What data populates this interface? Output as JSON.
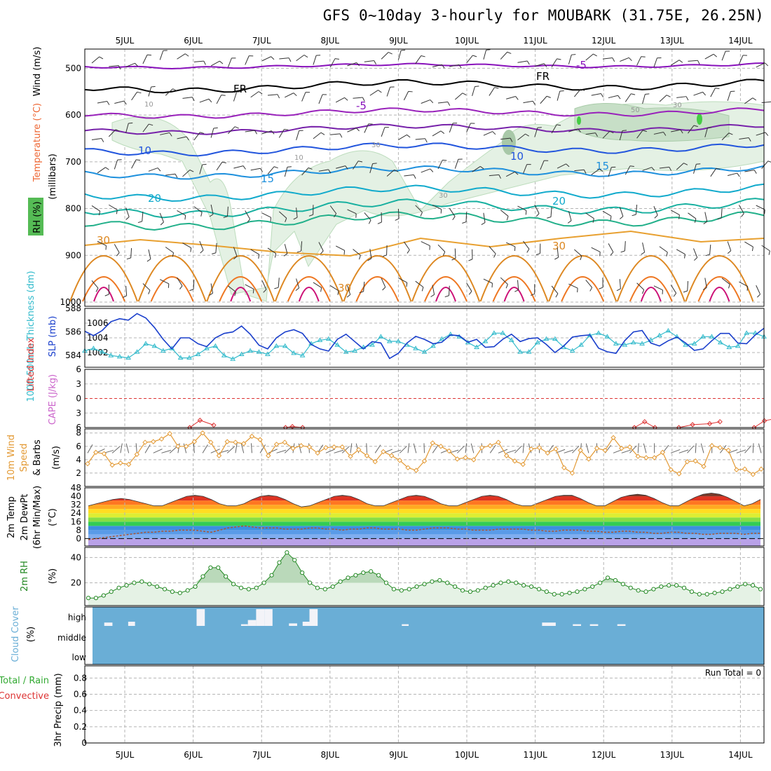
{
  "title": "GFS 0~10day 3-hourly for MOUBARK (31.75E, 26.25N)",
  "x_axis": {
    "labels": [
      "5JUL",
      "6JUL",
      "7JUL",
      "8JUL",
      "9JUL",
      "10JUL",
      "11JUL",
      "12JUL",
      "13JUL",
      "14JUL"
    ]
  },
  "panel_labels": {
    "upper_wind": "Wind (m/s)",
    "upper_temp": "Temperature (°C)",
    "upper_rh": "RH (%)",
    "upper_units": "(millibars)",
    "thickness": "1000-500mb Thickness (dm)",
    "slp": "SLP (mb)",
    "lifted_index": "Lifted Index",
    "cape": "CAPE (J/kg)",
    "wind10_a": "10m Wind",
    "wind10_b": "Speed",
    "wind10_c": "& Barbs",
    "wind10_units": "(m/s)",
    "temp_a": "2m Temp",
    "temp_b": "2m DewPt",
    "temp_c": "(6hr Min/Max)",
    "temp_units": "(°C)",
    "rh2m": "2m RH",
    "rh2m_units": "(%)",
    "cloud": "Cloud Cover",
    "cloud_units": "(%)",
    "precip_a": "Total / Rain",
    "precip_b": "Convective",
    "precip_c": "3hr Precip (mm)",
    "run_total": "Run Total = 0"
  },
  "colors": {
    "thickness": "#33bbcc",
    "slp": "#1a3fcc",
    "cape": "#cc66cc",
    "lifted_index": "#dd3333",
    "wind10": "#e39a35",
    "rh2m": "#228822",
    "cloud_bg": "#6aaed6",
    "precip_total": "#33aa33",
    "precip_conv": "#dd3333",
    "temp_label": "#ee6633",
    "wind_label": "#000000",
    "rh_label": "#228822"
  },
  "chart_data": [
    {
      "type": "heatmap",
      "panel": "upper-air cross section",
      "y_ticks": [
        "500",
        "600",
        "700",
        "800",
        "900",
        "1000"
      ],
      "ylim": [
        1000,
        450
      ],
      "temperature_contour_labels": [
        "-5",
        "-5",
        "10",
        "10",
        "15",
        "15",
        "20",
        "20",
        "30",
        "30",
        "30",
        "FR",
        "FR"
      ],
      "rh_contour_labels": [
        "10",
        "10",
        "30",
        "30",
        "50",
        "30"
      ]
    },
    {
      "type": "line",
      "panel": "thickness_slp",
      "thickness_ticks": [
        "584",
        "586",
        "588"
      ],
      "slp_ticks": [
        "1002",
        "1004",
        "1006"
      ],
      "ylim_thickness": [
        583,
        588
      ],
      "ylim_slp": [
        1000,
        1008
      ],
      "series": [
        {
          "name": "1000-500mb Thickness (dm)",
          "values": [
            584.4,
            584.6,
            584.3,
            584.0,
            583.9,
            583.8,
            584.3,
            585.0,
            584.8,
            584.4,
            584.6,
            583.8,
            583.8,
            584.1,
            584.6,
            584.8,
            584.0,
            583.7,
            584.1,
            584.4,
            584.3,
            584.1,
            584.8,
            584.8,
            584.2,
            584.0,
            585.0,
            585.3,
            585.4,
            584.9,
            584.3,
            584.4,
            584.7,
            584.9,
            585.6,
            585.2,
            585.2,
            584.9,
            584.6,
            584.3,
            584.8,
            585.4,
            585.8,
            585.6,
            585.1,
            584.7,
            585.2,
            585.9,
            585.9,
            585.3,
            584.3,
            584.3,
            585.1,
            585.4,
            585.4,
            584.7,
            584.4,
            584.9,
            585.7,
            585.9,
            585.6,
            585.0,
            584.9,
            585.1,
            585.0,
            585.3,
            585.7,
            586.1,
            585.6,
            584.9,
            585.0,
            585.6,
            585.6,
            585.1,
            584.7,
            584.8,
            585.9,
            585.9,
            585.6
          ]
        },
        {
          "name": "SLP (mb)",
          "values": [
            1004.9,
            1004.3,
            1005.0,
            1006.2,
            1006.6,
            1006.4,
            1007.3,
            1006.7,
            1005.4,
            1003.8,
            1002.5,
            1004.0,
            1004.0,
            1003.2,
            1002.8,
            1004.0,
            1004.6,
            1004.8,
            1005.6,
            1004.5,
            1003.0,
            1002.5,
            1004.0,
            1004.8,
            1005.1,
            1004.6,
            1003.1,
            1002.5,
            1002.2,
            1003.8,
            1004.5,
            1003.5,
            1002.5,
            1003.5,
            1003.3,
            1001.2,
            1001.9,
            1003.3,
            1004.2,
            1003.8,
            1003.2,
            1003.4,
            1004.4,
            1004.3,
            1003.4,
            1003.8,
            1002.7,
            1002.8,
            1003.8,
            1004.5,
            1003.5,
            1003.9,
            1004.0,
            1003.1,
            1002.0,
            1002.9,
            1004.1,
            1004.3,
            1004.4,
            1002.6,
            1002.1,
            1001.9,
            1003.6,
            1004.8,
            1005.0,
            1003.3,
            1002.9,
            1003.6,
            1004.1,
            1003.3,
            1002.3,
            1002.5,
            1003.6,
            1004.6,
            1004.6,
            1003.3,
            1003.2,
            1004.4,
            1005.3
          ]
        }
      ]
    },
    {
      "type": "line",
      "panel": "cape_lifted_index",
      "yticks": [
        "-6",
        "-3",
        "0",
        "3",
        "6"
      ],
      "lifted_index_ticks": [
        "6",
        "3",
        "0",
        "3",
        "6"
      ],
      "note_points": [
        {
          "day_offset": 0.95,
          "lifted_index": 6
        },
        {
          "day_offset": 1.1,
          "lifted_index": 4.5
        },
        {
          "day_offset": 2.45,
          "lifted_index": 5.8
        },
        {
          "day_offset": 7.6,
          "lifted_index": 4.8
        },
        {
          "day_offset": 8.3,
          "lifted_index": 5.4
        },
        {
          "day_offset": 8.55,
          "lifted_index": 4.8
        },
        {
          "day_offset": 9.35,
          "lifted_index": 4.2
        }
      ]
    },
    {
      "type": "line",
      "panel": "10m wind",
      "yticks": [
        "2",
        "4",
        "6",
        "8"
      ],
      "ylim": [
        0,
        8.6
      ],
      "series": [
        {
          "name": "10m Wind Speed",
          "values": [
            3.4,
            5.1,
            4.9,
            3.2,
            3.5,
            3.3,
            4.8,
            6.6,
            6.7,
            7.1,
            7.9,
            6.0,
            6.0,
            6.7,
            8.0,
            6.6,
            4.6,
            6.7,
            6.6,
            6.4,
            7.5,
            7.0,
            4.6,
            6.3,
            6.6,
            5.7,
            6.1,
            5.9,
            5.0,
            5.8,
            5.9,
            5.9,
            4.5,
            5.5,
            4.6,
            3.7,
            5.2,
            4.6,
            3.9,
            2.8,
            2.4,
            3.8,
            6.5,
            6.0,
            5.3,
            4.1,
            4.3,
            4.0,
            5.8,
            6.1,
            6.6,
            4.6,
            3.8,
            3.3,
            5.6,
            5.8,
            5.0,
            5.6,
            2.8,
            2.0,
            5.4,
            4.1,
            5.7,
            5.4,
            7.3,
            5.7,
            5.9,
            4.5,
            4.3,
            4.3,
            5.1,
            2.5,
            1.9,
            3.7,
            3.8,
            3.0,
            6.1,
            5.8,
            5.4,
            2.5,
            2.6,
            1.8,
            2.6
          ]
        }
      ]
    },
    {
      "type": "area",
      "panel": "2m temp",
      "yticks": [
        "0",
        "8",
        "16",
        "24",
        "32",
        "40",
        "48"
      ],
      "ylim": [
        -7,
        48
      ],
      "series": [
        {
          "name": "2m Temp",
          "values": [
            31,
            33,
            35,
            37,
            38,
            37,
            35,
            33,
            31,
            31,
            34,
            37,
            40,
            41,
            40,
            37,
            33,
            31,
            31,
            33,
            37,
            40,
            41,
            40,
            37,
            33,
            30,
            31,
            34,
            37,
            40,
            41,
            40,
            37,
            33,
            31,
            31,
            34,
            37,
            40,
            41,
            40,
            37,
            33,
            31,
            31,
            34,
            37,
            40,
            41,
            40,
            37,
            33,
            31,
            31,
            34,
            37,
            40,
            41,
            41,
            38,
            34,
            31,
            31,
            35,
            39,
            41,
            42,
            41,
            38,
            34,
            31,
            31,
            35,
            39,
            42,
            43,
            42,
            39,
            35,
            31,
            33,
            37
          ]
        },
        {
          "name": "2m DewPt",
          "values": [
            -1,
            0,
            1,
            2,
            3,
            4,
            5,
            6,
            6,
            7,
            7,
            8,
            8,
            8,
            7,
            6,
            8,
            10,
            11,
            12,
            11,
            10,
            10,
            10,
            9,
            9,
            9,
            10,
            10,
            9,
            9,
            8,
            9,
            9,
            10,
            10,
            9,
            9,
            9,
            8,
            8,
            9,
            10,
            10,
            10,
            9,
            9,
            8,
            8,
            8,
            9,
            9,
            9,
            9,
            8,
            8,
            7,
            7,
            8,
            8,
            8,
            7,
            7,
            6,
            6,
            7,
            7,
            6,
            6,
            5,
            5,
            6,
            6,
            5,
            5,
            4,
            4,
            5,
            5,
            5,
            4,
            5,
            5
          ]
        }
      ]
    },
    {
      "type": "area",
      "panel": "2m RH",
      "yticks": [
        "20",
        "40"
      ],
      "ylim": [
        2,
        48
      ],
      "series": [
        {
          "name": "2m RH",
          "values": [
            8,
            8,
            10,
            13,
            16,
            18,
            20,
            21,
            19,
            17,
            15,
            13,
            12,
            14,
            17,
            25,
            32,
            32,
            25,
            19,
            16,
            15,
            16,
            20,
            26,
            36,
            44,
            38,
            28,
            20,
            16,
            15,
            17,
            21,
            24,
            26,
            28,
            29,
            26,
            20,
            15,
            14,
            15,
            17,
            19,
            21,
            22,
            20,
            17,
            14,
            13,
            14,
            16,
            18,
            20,
            21,
            20,
            18,
            17,
            15,
            13,
            11,
            11,
            12,
            13,
            15,
            17,
            20,
            24,
            22,
            19,
            16,
            14,
            13,
            15,
            17,
            18,
            18,
            16,
            13,
            11,
            11,
            12,
            13,
            15,
            17,
            19,
            18,
            15
          ]
        }
      ]
    },
    {
      "type": "bar",
      "panel": "cloud cover",
      "yticks": [
        "low",
        "middle",
        "high"
      ],
      "high_cloud_blocks": [
        {
          "day_offset": -0.3,
          "width": 0.12,
          "amount": 0.2
        },
        {
          "day_offset": 0.05,
          "width": 0.1,
          "amount": 0.25
        },
        {
          "day_offset": 1.05,
          "width": 0.12,
          "amount": 1.0
        },
        {
          "day_offset": 1.7,
          "width": 0.1,
          "amount": 0.1
        },
        {
          "day_offset": 1.8,
          "width": 0.12,
          "amount": 0.35
        },
        {
          "day_offset": 1.92,
          "width": 0.12,
          "amount": 1.0
        },
        {
          "day_offset": 2.04,
          "width": 0.12,
          "amount": 1.0
        },
        {
          "day_offset": 2.4,
          "width": 0.12,
          "amount": 0.15
        },
        {
          "day_offset": 2.6,
          "width": 0.1,
          "amount": 0.25
        },
        {
          "day_offset": 2.7,
          "width": 0.12,
          "amount": 1.0
        },
        {
          "day_offset": 4.05,
          "width": 0.1,
          "amount": 0.1
        },
        {
          "day_offset": 6.1,
          "width": 0.2,
          "amount": 0.2
        },
        {
          "day_offset": 6.55,
          "width": 0.12,
          "amount": 0.1
        },
        {
          "day_offset": 6.8,
          "width": 0.12,
          "amount": 0.1
        },
        {
          "day_offset": 7.2,
          "width": 0.12,
          "amount": 0.1
        }
      ]
    },
    {
      "type": "bar",
      "panel": "3hr precip",
      "yticks": [
        "0",
        "0.2",
        "0.4",
        "0.6",
        "0.8"
      ],
      "ylim": [
        0,
        0.95
      ],
      "values": []
    }
  ]
}
